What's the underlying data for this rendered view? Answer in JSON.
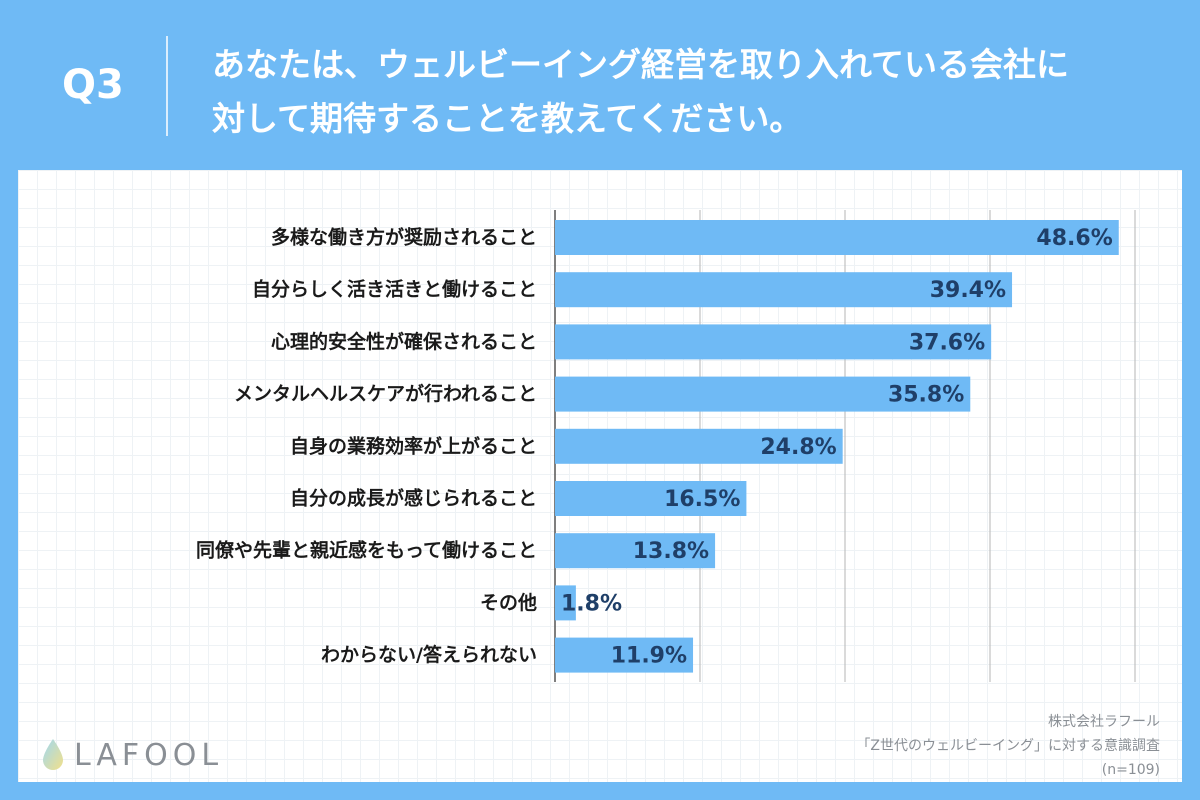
{
  "header": {
    "q_number": "Q3",
    "question_line1": "あなたは、ウェルビーイング経営を取り入れている会社に",
    "question_line2": "対して期待することを教えてください。"
  },
  "chart_data": {
    "type": "bar",
    "orientation": "horizontal",
    "categories": [
      "多様な働き方が奨励されること",
      "自分らしく活き活きと働けること",
      "心理的安全性が確保されること",
      "メンタルヘルスケアが行われること",
      "自身の業務効率が上がること",
      "自分の成長が感じられること",
      "同僚や先輩と親近感をもって働けること",
      "その他",
      "わからない/答えられない"
    ],
    "values": [
      48.6,
      39.4,
      37.6,
      35.8,
      24.8,
      16.5,
      13.8,
      1.8,
      11.9
    ],
    "value_labels": [
      "48.6%",
      "39.4%",
      "37.6%",
      "35.8%",
      "24.8%",
      "16.5%",
      "13.8%",
      "1.8%",
      "11.9%"
    ],
    "xlim": [
      0,
      50
    ],
    "gridlines": [
      12.5,
      25,
      37.5,
      50
    ],
    "bar_color": "#6fbaf5",
    "value_label_color": "#1f3f68"
  },
  "logo": {
    "text": "LAFOOL"
  },
  "source": {
    "company": "株式会社ラフール",
    "survey": "「Z世代のウェルビーイング」に対する意識調査",
    "sample": "(n=109)"
  }
}
